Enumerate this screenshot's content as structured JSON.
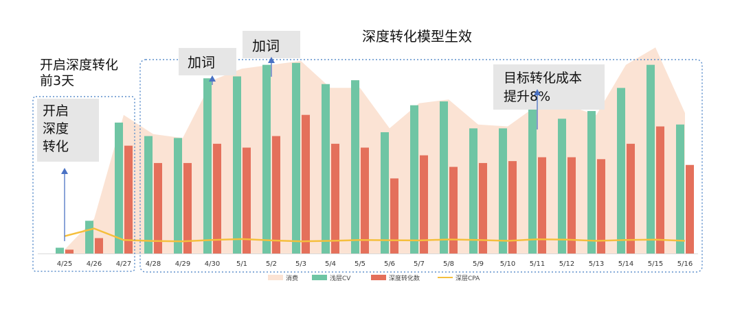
{
  "chart_data": {
    "type": "bar",
    "title": "深度转化模型生效",
    "categories": [
      "4/25",
      "4/26",
      "4/27",
      "4/28",
      "4/29",
      "4/30",
      "5/1",
      "5/2",
      "5/3",
      "5/4",
      "5/5",
      "5/6",
      "5/7",
      "5/8",
      "5/9",
      "5/10",
      "5/11",
      "5/12",
      "5/13",
      "5/14",
      "5/15",
      "5/16"
    ],
    "ylim": [
      0,
      100
    ],
    "grid": false,
    "legend_position": "bottom",
    "series": [
      {
        "name": "消费",
        "type": "area",
        "color": "#fbe3d4",
        "values": [
          2,
          18,
          72,
          62,
          60,
          90,
          96,
          98,
          100,
          86,
          86,
          65,
          78,
          80,
          67,
          66,
          77,
          77,
          72,
          98,
          107,
          73
        ]
      },
      {
        "name": "浅层CV",
        "type": "bar",
        "color": "#6fc5a4",
        "values": [
          3,
          17,
          68,
          61,
          60,
          91,
          92,
          98,
          99,
          88,
          90,
          63,
          77,
          79,
          65,
          65,
          76,
          70,
          74,
          86,
          98,
          67
        ]
      },
      {
        "name": "深度转化数",
        "type": "bar",
        "color": "#e4705b",
        "values": [
          2,
          8,
          56,
          47,
          47,
          57,
          55,
          61,
          72,
          57,
          55,
          39,
          51,
          45,
          47,
          48,
          50,
          50,
          49,
          57,
          66,
          46
        ]
      },
      {
        "name": "深层CPA",
        "type": "line",
        "color": "#f5bf3c",
        "values": [
          9,
          13,
          7,
          6.5,
          6.3,
          7,
          7.5,
          6.8,
          6.3,
          6.6,
          7,
          6.9,
          6.8,
          7.3,
          7,
          6.6,
          7.4,
          7.2,
          6.6,
          7,
          7.2,
          6.6
        ]
      }
    ],
    "annotations": [
      {
        "id": "pre",
        "text": [
          "开启深度转化",
          "前3天"
        ]
      },
      {
        "id": "open",
        "text": [
          "开启",
          "深度",
          "转化"
        ],
        "category": "4/25"
      },
      {
        "id": "add1",
        "text": [
          "加词"
        ],
        "category": "4/30"
      },
      {
        "id": "add2",
        "text": [
          "加词"
        ],
        "category": "5/2"
      },
      {
        "id": "target",
        "text": [
          "目标转化成本",
          "提升8%"
        ],
        "category": "5/11"
      }
    ]
  }
}
